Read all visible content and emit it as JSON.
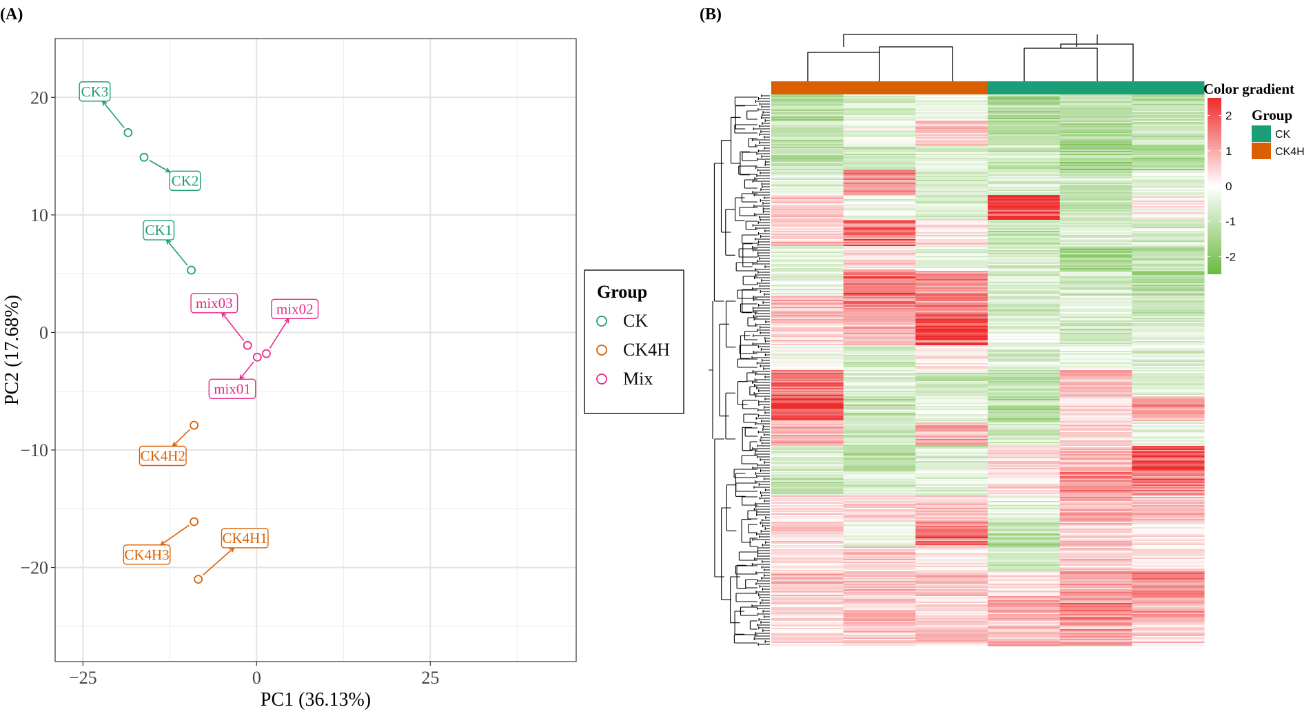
{
  "panels": {
    "a_label": "(A)",
    "b_label": "(B)"
  },
  "chart_data": [
    {
      "type": "scatter",
      "panel": "(A)",
      "xlabel": "PC1 (36.13%)",
      "ylabel": "PC2 (17.68%)",
      "xlim": [
        -29,
        46
      ],
      "ylim": [
        -28,
        25
      ],
      "xticks": [
        -25,
        0,
        25
      ],
      "yticks": [
        20,
        10,
        0,
        -10,
        -20
      ],
      "grid": true,
      "legend": {
        "title": "Group",
        "placement": "right",
        "entries": [
          {
            "name": "CK",
            "color": "#1b9e77"
          },
          {
            "name": "CK4H",
            "color": "#d95f02"
          },
          {
            "name": "Mix",
            "color": "#e7298a"
          }
        ]
      },
      "points": [
        {
          "label": "CK3",
          "group": "CK",
          "x": -18.5,
          "y": 17.0,
          "label_x": -23.3,
          "label_y": 20.5
        },
        {
          "label": "CK2",
          "group": "CK",
          "x": -16.2,
          "y": 14.9,
          "label_x": -10.3,
          "label_y": 12.9
        },
        {
          "label": "CK1",
          "group": "CK",
          "x": -9.4,
          "y": 5.3,
          "label_x": -14.1,
          "label_y": 8.7
        },
        {
          "label": "mix03",
          "group": "Mix",
          "x": -1.3,
          "y": -1.1,
          "label_x": -6.1,
          "label_y": 2.5
        },
        {
          "label": "mix02",
          "group": "Mix",
          "x": 1.4,
          "y": -1.8,
          "label_x": 5.5,
          "label_y": 2.0
        },
        {
          "label": "mix01",
          "group": "Mix",
          "x": 0.1,
          "y": -2.1,
          "label_x": -3.5,
          "label_y": -4.8
        },
        {
          "label": "CK4H2",
          "group": "CK4H",
          "x": -9.0,
          "y": -7.9,
          "label_x": -13.5,
          "label_y": -10.5
        },
        {
          "label": "CK4H3",
          "group": "CK4H",
          "x": -9.0,
          "y": -16.1,
          "label_x": -15.8,
          "label_y": -18.9
        },
        {
          "label": "CK4H1",
          "group": "CK4H",
          "x": -8.4,
          "y": -21.0,
          "label_x": -1.7,
          "label_y": -17.5
        }
      ]
    },
    {
      "type": "heatmap",
      "panel": "(B)",
      "columns": 6,
      "column_groups": [
        "CK4H",
        "CK4H",
        "CK4H",
        "CK",
        "CK",
        "CK"
      ],
      "color_scale": {
        "title": "Color gradient",
        "ticks": [
          2,
          1,
          0,
          -1,
          -2
        ],
        "min": -2.5,
        "max": 2.5,
        "low": "#6ab93f",
        "mid": "#ffffff",
        "high": "#ee2a2a"
      },
      "group_legend": {
        "title": "Group",
        "entries": [
          {
            "name": "CK",
            "color": "#1b9e77"
          },
          {
            "name": "CK4H",
            "color": "#d95f02"
          }
        ]
      },
      "blocks": [
        [
          -1.2,
          -0.7,
          -0.4,
          -1.5,
          -1.3,
          -1.2
        ],
        [
          -1.0,
          -0.3,
          0.8,
          -1.3,
          -1.4,
          -1.0
        ],
        [
          -1.1,
          -1.0,
          -0.5,
          -0.8,
          -1.6,
          -1.4
        ],
        [
          -0.6,
          1.5,
          -0.8,
          -0.6,
          -0.9,
          -0.4
        ],
        [
          0.6,
          -0.5,
          -0.7,
          2.3,
          -1.0,
          0.3
        ],
        [
          0.7,
          1.8,
          0.4,
          -1.0,
          -0.6,
          -0.8
        ],
        [
          -0.5,
          0.6,
          -0.4,
          -0.7,
          -1.5,
          -1.1
        ],
        [
          -0.4,
          2.0,
          1.4,
          -0.6,
          -0.8,
          -1.3
        ],
        [
          0.8,
          1.4,
          1.8,
          -0.9,
          -0.5,
          -1.0
        ],
        [
          0.5,
          1.0,
          2.4,
          -0.4,
          -1.0,
          -0.7
        ],
        [
          -0.2,
          -0.8,
          0.3,
          -0.7,
          -0.4,
          -0.6
        ],
        [
          1.6,
          -0.6,
          -0.9,
          -1.0,
          1.0,
          -0.5
        ],
        [
          2.1,
          -1.0,
          -0.3,
          -1.3,
          0.4,
          1.2
        ],
        [
          0.9,
          -0.9,
          1.0,
          -0.8,
          0.5,
          -0.4
        ],
        [
          -0.8,
          -1.3,
          -0.8,
          0.6,
          1.0,
          2.3
        ],
        [
          -1.0,
          -0.7,
          -0.5,
          0.4,
          1.4,
          1.6
        ],
        [
          0.5,
          0.4,
          0.7,
          -0.5,
          1.1,
          0.8
        ],
        [
          0.8,
          -0.3,
          1.9,
          -1.2,
          0.6,
          0.3
        ],
        [
          0.3,
          0.6,
          0.2,
          -0.8,
          0.6,
          0.4
        ],
        [
          0.7,
          0.9,
          0.8,
          0.4,
          1.2,
          1.6
        ],
        [
          0.5,
          0.7,
          0.4,
          1.1,
          1.5,
          1.3
        ],
        [
          0.4,
          0.6,
          0.7,
          0.8,
          1.2,
          0.6
        ]
      ]
    }
  ]
}
